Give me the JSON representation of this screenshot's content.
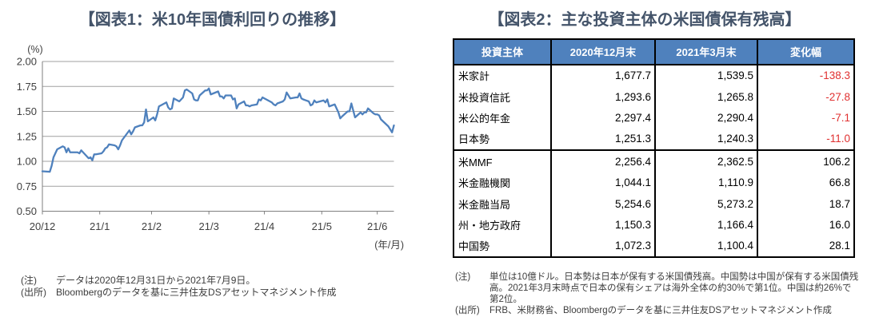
{
  "figure1": {
    "title": "【図表1：米10年国債利回りの推移】",
    "note_label": "(注)",
    "note_text": "データは2020年12月31日から2021年7月9日。",
    "source_label": "(出所)",
    "source_text": "Bloombergのデータを基に三井住友DSアセットマネジメント作成"
  },
  "figure2": {
    "title": "【図表2：主な投資主体の米国債保有残高】",
    "note_label": "(注)",
    "note_lines": [
      "単位は10億ドル。日本勢は日本が保有する米国債残高。中国勢は中国が保有する米国債残",
      "高。2021年3月末時点で日本の保有シェアは海外全体の約30%で第1位。中国は約26%で",
      "第2位。"
    ],
    "source_label": "(出所)",
    "source_text": "FRB、米財務省、Bloombergのデータを基に三井住友DSアセットマネジメント作成"
  },
  "chart_data": [
    {
      "type": "line",
      "title": "米10年国債利回りの推移",
      "ylabel": "(%)",
      "xlabel": "(年/月)",
      "ylim": [
        0.5,
        2.0
      ],
      "y_tick_step": 0.25,
      "y_tick_labels": [
        "2.00",
        "1.75",
        "1.50",
        "1.25",
        "1.00",
        "0.75",
        "0.50"
      ],
      "x_start_date": "2020-12-31",
      "x_end_date": "2021-07-09",
      "x_total_days": 190,
      "x_ticks": [
        {
          "label": "20/12",
          "day": 0
        },
        {
          "label": "21/1",
          "day": 31
        },
        {
          "label": "21/2",
          "day": 59
        },
        {
          "label": "21/3",
          "day": 90
        },
        {
          "label": "21/4",
          "day": 120
        },
        {
          "label": "21/5",
          "day": 151
        },
        {
          "label": "21/6",
          "day": 181
        }
      ],
      "grid": true,
      "line_color": "#4f81bd",
      "grid_color": "#a0a0a0",
      "axis_color": "#7f7f7f",
      "label_color": "#404040",
      "series": [
        {
          "name": "米10年国債利回り(%)",
          "points": [
            [
              "2020-12-31",
              0.9
            ],
            [
              "2021-01-04",
              0.895
            ],
            [
              "2021-01-05",
              0.955
            ],
            [
              "2021-01-06",
              1.04
            ],
            [
              "2021-01-07",
              1.08
            ],
            [
              "2021-01-08",
              1.12
            ],
            [
              "2021-01-11",
              1.15
            ],
            [
              "2021-01-12",
              1.14
            ],
            [
              "2021-01-13",
              1.09
            ],
            [
              "2021-01-14",
              1.13
            ],
            [
              "2021-01-15",
              1.09
            ],
            [
              "2021-01-19",
              1.09
            ],
            [
              "2021-01-20",
              1.08
            ],
            [
              "2021-01-21",
              1.11
            ],
            [
              "2021-01-22",
              1.09
            ],
            [
              "2021-01-25",
              1.03
            ],
            [
              "2021-01-26",
              1.04
            ],
            [
              "2021-01-27",
              1.01
            ],
            [
              "2021-01-28",
              1.07
            ],
            [
              "2021-01-29",
              1.07
            ],
            [
              "2021-02-01",
              1.08
            ],
            [
              "2021-02-02",
              1.1
            ],
            [
              "2021-02-03",
              1.13
            ],
            [
              "2021-02-04",
              1.14
            ],
            [
              "2021-02-05",
              1.17
            ],
            [
              "2021-02-08",
              1.16
            ],
            [
              "2021-02-09",
              1.15
            ],
            [
              "2021-02-10",
              1.12
            ],
            [
              "2021-02-11",
              1.16
            ],
            [
              "2021-02-12",
              1.21
            ],
            [
              "2021-02-16",
              1.31
            ],
            [
              "2021-02-17",
              1.27
            ],
            [
              "2021-02-18",
              1.3
            ],
            [
              "2021-02-19",
              1.34
            ],
            [
              "2021-02-22",
              1.36
            ],
            [
              "2021-02-23",
              1.36
            ],
            [
              "2021-02-24",
              1.39
            ],
            [
              "2021-02-25",
              1.52
            ],
            [
              "2021-02-26",
              1.4
            ],
            [
              "2021-03-01",
              1.44
            ],
            [
              "2021-03-02",
              1.41
            ],
            [
              "2021-03-03",
              1.47
            ],
            [
              "2021-03-04",
              1.55
            ],
            [
              "2021-03-05",
              1.56
            ],
            [
              "2021-03-08",
              1.59
            ],
            [
              "2021-03-09",
              1.54
            ],
            [
              "2021-03-10",
              1.52
            ],
            [
              "2021-03-11",
              1.53
            ],
            [
              "2021-03-12",
              1.63
            ],
            [
              "2021-03-15",
              1.6
            ],
            [
              "2021-03-16",
              1.62
            ],
            [
              "2021-03-17",
              1.64
            ],
            [
              "2021-03-18",
              1.71
            ],
            [
              "2021-03-19",
              1.72
            ],
            [
              "2021-03-22",
              1.68
            ],
            [
              "2021-03-23",
              1.62
            ],
            [
              "2021-03-24",
              1.61
            ],
            [
              "2021-03-25",
              1.61
            ],
            [
              "2021-03-26",
              1.66
            ],
            [
              "2021-03-29",
              1.71
            ],
            [
              "2021-03-30",
              1.71
            ],
            [
              "2021-03-31",
              1.73
            ],
            [
              "2021-04-01",
              1.67
            ],
            [
              "2021-04-05",
              1.7
            ],
            [
              "2021-04-06",
              1.65
            ],
            [
              "2021-04-07",
              1.65
            ],
            [
              "2021-04-08",
              1.63
            ],
            [
              "2021-04-09",
              1.66
            ],
            [
              "2021-04-12",
              1.66
            ],
            [
              "2021-04-13",
              1.62
            ],
            [
              "2021-04-14",
              1.63
            ],
            [
              "2021-04-15",
              1.53
            ],
            [
              "2021-04-16",
              1.57
            ],
            [
              "2021-04-19",
              1.6
            ],
            [
              "2021-04-20",
              1.56
            ],
            [
              "2021-04-21",
              1.56
            ],
            [
              "2021-04-22",
              1.55
            ],
            [
              "2021-04-23",
              1.56
            ],
            [
              "2021-04-26",
              1.57
            ],
            [
              "2021-04-27",
              1.62
            ],
            [
              "2021-04-28",
              1.61
            ],
            [
              "2021-04-29",
              1.64
            ],
            [
              "2021-04-30",
              1.63
            ],
            [
              "2021-05-03",
              1.6
            ],
            [
              "2021-05-04",
              1.59
            ],
            [
              "2021-05-05",
              1.57
            ],
            [
              "2021-05-06",
              1.56
            ],
            [
              "2021-05-07",
              1.58
            ],
            [
              "2021-05-10",
              1.6
            ],
            [
              "2021-05-11",
              1.62
            ],
            [
              "2021-05-12",
              1.69
            ],
            [
              "2021-05-13",
              1.66
            ],
            [
              "2021-05-14",
              1.63
            ],
            [
              "2021-05-17",
              1.64
            ],
            [
              "2021-05-18",
              1.64
            ],
            [
              "2021-05-19",
              1.68
            ],
            [
              "2021-05-20",
              1.63
            ],
            [
              "2021-05-21",
              1.62
            ],
            [
              "2021-05-24",
              1.6
            ],
            [
              "2021-05-25",
              1.56
            ],
            [
              "2021-05-26",
              1.57
            ],
            [
              "2021-05-27",
              1.61
            ],
            [
              "2021-05-28",
              1.59
            ],
            [
              "2021-06-01",
              1.61
            ],
            [
              "2021-06-02",
              1.59
            ],
            [
              "2021-06-03",
              1.62
            ],
            [
              "2021-06-04",
              1.55
            ],
            [
              "2021-06-07",
              1.57
            ],
            [
              "2021-06-08",
              1.53
            ],
            [
              "2021-06-09",
              1.49
            ],
            [
              "2021-06-10",
              1.43
            ],
            [
              "2021-06-11",
              1.45
            ],
            [
              "2021-06-14",
              1.5
            ],
            [
              "2021-06-15",
              1.5
            ],
            [
              "2021-06-16",
              1.58
            ],
            [
              "2021-06-17",
              1.51
            ],
            [
              "2021-06-18",
              1.44
            ],
            [
              "2021-06-21",
              1.49
            ],
            [
              "2021-06-22",
              1.47
            ],
            [
              "2021-06-23",
              1.49
            ],
            [
              "2021-06-24",
              1.49
            ],
            [
              "2021-06-25",
              1.53
            ],
            [
              "2021-06-28",
              1.48
            ],
            [
              "2021-06-29",
              1.47
            ],
            [
              "2021-06-30",
              1.47
            ],
            [
              "2021-07-01",
              1.46
            ],
            [
              "2021-07-02",
              1.42
            ],
            [
              "2021-07-06",
              1.35
            ],
            [
              "2021-07-07",
              1.32
            ],
            [
              "2021-07-08",
              1.29
            ],
            [
              "2021-07-09",
              1.36
            ]
          ]
        }
      ]
    },
    {
      "type": "table",
      "title": "主な投資主体の米国債保有残高",
      "header_bg": "#4f81bd",
      "header_color": "#ffffff",
      "negative_color": "#e03131",
      "columns": [
        "投資主体",
        "2020年12月末",
        "2021年3月末",
        "変化幅"
      ],
      "groups": [
        {
          "rows": [
            {
              "name": "米家計",
              "dec2020": "1,677.7",
              "mar2021": "1,539.5",
              "change": "-138.3",
              "negative": true
            },
            {
              "name": "米投資信託",
              "dec2020": "1,293.6",
              "mar2021": "1,265.8",
              "change": "-27.8",
              "negative": true
            },
            {
              "name": "米公的年金",
              "dec2020": "2,297.4",
              "mar2021": "2,290.4",
              "change": "-7.1",
              "negative": true
            },
            {
              "name": "日本勢",
              "dec2020": "1,251.3",
              "mar2021": "1,240.3",
              "change": "-11.0",
              "negative": true
            }
          ]
        },
        {
          "rows": [
            {
              "name": "米MMF",
              "dec2020": "2,256.4",
              "mar2021": "2,362.5",
              "change": "106.2",
              "negative": false
            },
            {
              "name": "米金融機関",
              "dec2020": "1,044.1",
              "mar2021": "1,110.9",
              "change": "66.8",
              "negative": false
            },
            {
              "name": "米金融当局",
              "dec2020": "5,254.6",
              "mar2021": "5,273.2",
              "change": "18.7",
              "negative": false
            },
            {
              "name": "州・地方政府",
              "dec2020": "1,150.3",
              "mar2021": "1,166.4",
              "change": "16.0",
              "negative": false
            },
            {
              "name": "中国勢",
              "dec2020": "1,072.3",
              "mar2021": "1,100.4",
              "change": "28.1",
              "negative": false
            }
          ]
        }
      ]
    }
  ]
}
